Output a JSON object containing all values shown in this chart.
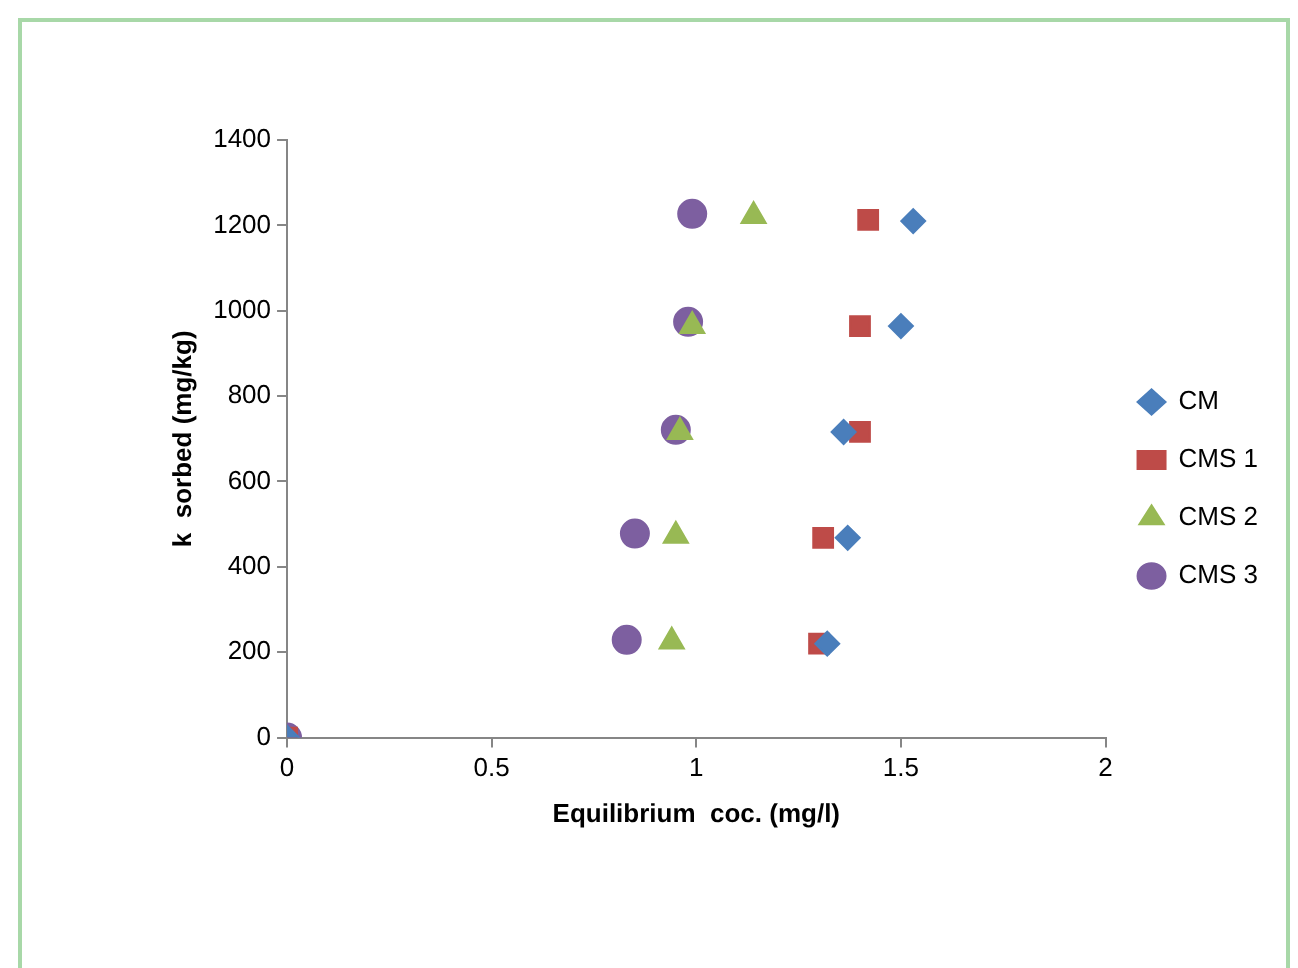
{
  "chart_data": {
    "type": "scatter",
    "xlabel": "Equilibrium  coc. (mg/l)",
    "ylabel": "k  sorbed (mg/kg)",
    "xlim": [
      0,
      2
    ],
    "xticks": [
      0,
      0.5,
      1,
      1.5,
      2
    ],
    "ylim": [
      0,
      1400
    ],
    "yticks": [
      0,
      200,
      400,
      600,
      800,
      1000,
      1200,
      1400
    ],
    "grid": false,
    "legend": "right",
    "series": [
      {
        "name": "CM",
        "color": "#4a7ebb",
        "marker": "diamond",
        "x": [
          0,
          1.32,
          1.37,
          1.36,
          1.5,
          1.53
        ],
        "values": [
          0,
          220,
          468,
          716,
          964,
          1210
        ]
      },
      {
        "name": "CMS 1",
        "color": "#be4b48",
        "marker": "square",
        "x": [
          0,
          1.3,
          1.31,
          1.4,
          1.4,
          1.42
        ],
        "values": [
          0,
          220,
          468,
          716,
          964,
          1213
        ]
      },
      {
        "name": "CMS 2",
        "color": "#98b954",
        "marker": "triangle",
        "x": [
          0.94,
          0.95,
          0.96,
          0.99,
          1.14
        ],
        "values": [
          225,
          473,
          716,
          964,
          1222
        ]
      },
      {
        "name": "CMS 3",
        "color": "#7d5fa0",
        "marker": "circle",
        "x": [
          0,
          0.83,
          0.85,
          0.95,
          0.98,
          0.99
        ],
        "values": [
          0,
          229,
          478,
          721,
          974,
          1227
        ]
      }
    ]
  }
}
